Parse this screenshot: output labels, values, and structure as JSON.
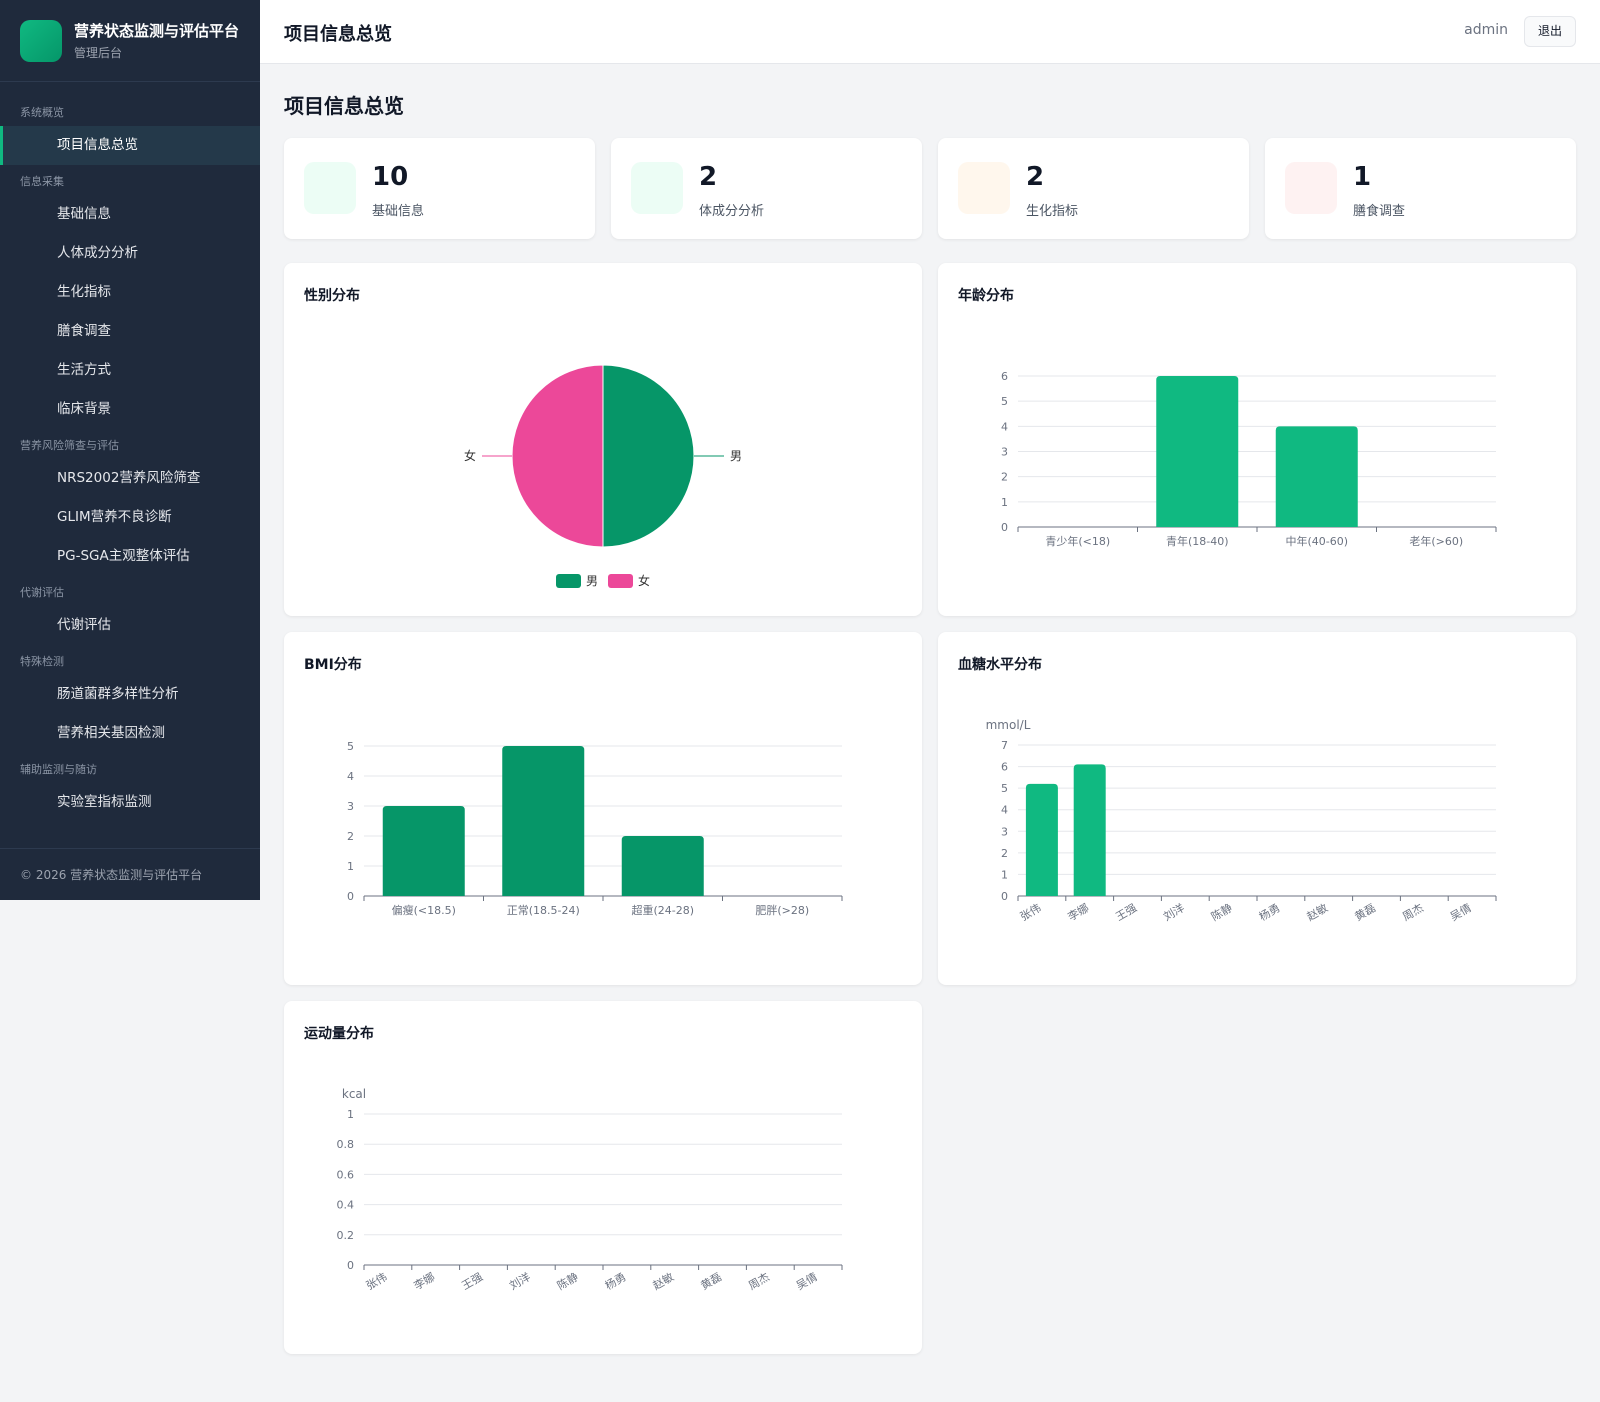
{
  "app": {
    "title": "营养状态监测与评估平台",
    "subtitle": "管理后台"
  },
  "sidebar": {
    "groups": [
      {
        "label": "系统概览",
        "items": [
          {
            "label": "项目信息总览",
            "active": true
          }
        ]
      },
      {
        "label": "信息采集",
        "items": [
          {
            "label": "基础信息"
          },
          {
            "label": "人体成分分析"
          },
          {
            "label": "生化指标"
          },
          {
            "label": "膳食调查"
          },
          {
            "label": "生活方式"
          },
          {
            "label": "临床背景"
          }
        ]
      },
      {
        "label": "营养风险筛查与评估",
        "items": [
          {
            "label": "NRS2002营养风险筛查"
          },
          {
            "label": "GLIM营养不良诊断"
          },
          {
            "label": "PG-SGA主观整体评估"
          }
        ]
      },
      {
        "label": "代谢评估",
        "items": [
          {
            "label": "代谢评估"
          }
        ]
      },
      {
        "label": "特殊检测",
        "items": [
          {
            "label": "肠道菌群多样性分析"
          },
          {
            "label": "营养相关基因检测"
          }
        ]
      },
      {
        "label": "辅助监测与随访",
        "items": [
          {
            "label": "实验室指标监测"
          }
        ]
      }
    ],
    "footer": "© 2026 营养状态监测与评估平台"
  },
  "header": {
    "title": "项目信息总览",
    "user": "admin",
    "logout": "退出"
  },
  "page": {
    "title": "项目信息总览"
  },
  "stats": [
    {
      "value": "10",
      "label": "基础信息",
      "icon_bg": "#ecfdf5"
    },
    {
      "value": "2",
      "label": "体成分分析",
      "icon_bg": "#ecfdf5"
    },
    {
      "value": "2",
      "label": "生化指标",
      "icon_bg": "#fff7ed"
    },
    {
      "value": "1",
      "label": "膳食调查",
      "icon_bg": "#fef2f2"
    }
  ],
  "colors": {
    "male": "#069668",
    "female": "#ec4899",
    "bar_dark": "#069668",
    "bar_light": "#10b981",
    "axis": "#6b7280",
    "grid": "#e5e7eb"
  },
  "chart_data": [
    {
      "id": "gender",
      "type": "pie",
      "title": "性别分布",
      "slices": [
        {
          "name": "男",
          "value": 5
        },
        {
          "name": "女",
          "value": 5
        }
      ],
      "legend": "bottom"
    },
    {
      "id": "age",
      "type": "bar",
      "title": "年龄分布",
      "categories": [
        "青少年(<18)",
        "青年(18-40)",
        "中年(40-60)",
        "老年(>60)"
      ],
      "values": [
        0,
        6,
        4,
        0
      ],
      "ylim": [
        0,
        6
      ],
      "yticks": [
        0,
        1,
        2,
        3,
        4,
        5,
        6
      ],
      "unit": "",
      "color": "#10b981",
      "rotate": false
    },
    {
      "id": "bmi",
      "type": "bar",
      "title": "BMI分布",
      "categories": [
        "偏瘦(<18.5)",
        "正常(18.5-24)",
        "超重(24-28)",
        "肥胖(>28)"
      ],
      "values": [
        3,
        5,
        2,
        0
      ],
      "ylim": [
        0,
        5
      ],
      "yticks": [
        0,
        1,
        2,
        3,
        4,
        5
      ],
      "unit": "",
      "color": "#069668",
      "rotate": false
    },
    {
      "id": "glucose",
      "type": "bar",
      "title": "血糖水平分布",
      "categories": [
        "张伟",
        "李娜",
        "王强",
        "刘洋",
        "陈静",
        "杨勇",
        "赵敏",
        "黄磊",
        "周杰",
        "吴倩"
      ],
      "values": [
        5.2,
        6.1,
        0,
        0,
        0,
        0,
        0,
        0,
        0,
        0
      ],
      "ylim": [
        0,
        7
      ],
      "yticks": [
        0,
        1,
        2,
        3,
        4,
        5,
        6,
        7
      ],
      "unit": "mmol/L",
      "color": "#10b981",
      "rotate": true
    },
    {
      "id": "exercise",
      "type": "bar",
      "title": "运动量分布",
      "categories": [
        "张伟",
        "李娜",
        "王强",
        "刘洋",
        "陈静",
        "杨勇",
        "赵敏",
        "黄磊",
        "周杰",
        "吴倩"
      ],
      "values": [
        0,
        0,
        0,
        0,
        0,
        0,
        0,
        0,
        0,
        0
      ],
      "ylim": [
        0,
        1
      ],
      "yticks": [
        0,
        0.2,
        0.4,
        0.6,
        0.8,
        1
      ],
      "unit": "kcal",
      "color": "#10b981",
      "rotate": true
    }
  ]
}
